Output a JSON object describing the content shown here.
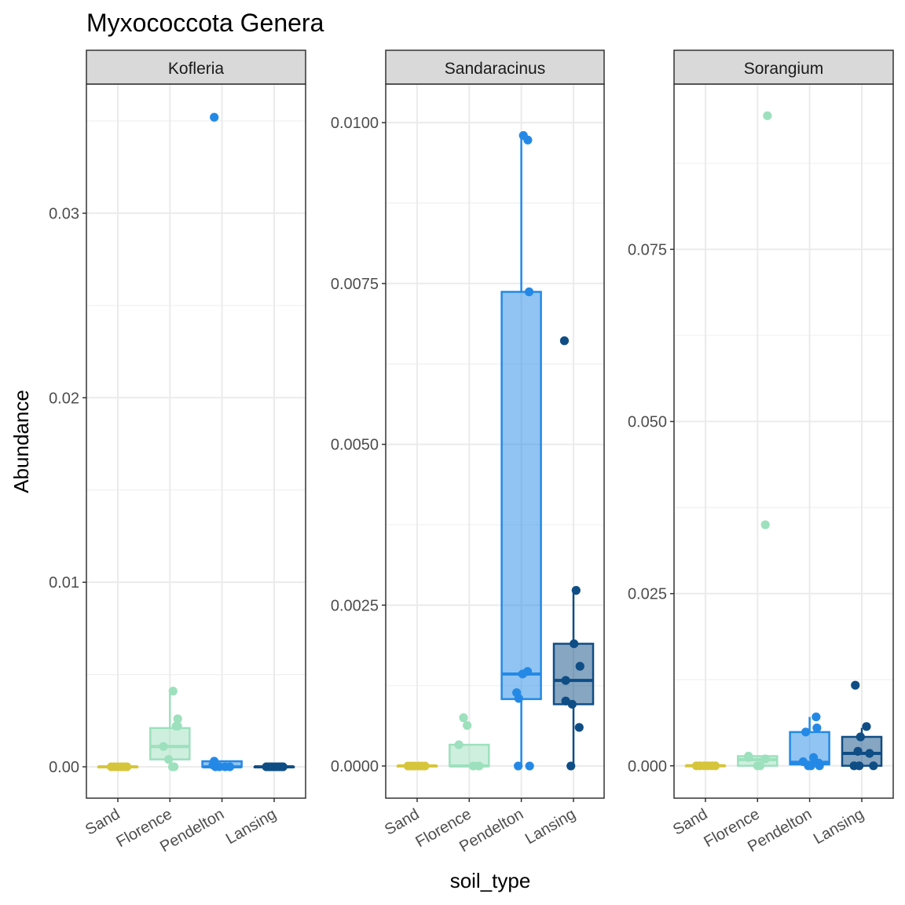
{
  "title": "Myxococcota Genera",
  "xlabel": "soil_type",
  "ylabel": "Abundance",
  "colors": {
    "Sand": "#d6c53a",
    "Florence": "#9de0bd",
    "Pendelton": "#2489e6",
    "Lansing": "#0f4d85"
  },
  "chart_data": [
    {
      "type": "boxplot",
      "facet": "Kofleria",
      "categories": [
        "Sand",
        "Florence",
        "Pendelton",
        "Lansing"
      ],
      "ylim": [
        -0.0017,
        0.037
      ],
      "yticks": [
        0.0,
        0.01,
        0.02,
        0.03
      ],
      "ytick_labels": [
        "0.00",
        "0.01",
        "0.02",
        "0.03"
      ],
      "boxes": [
        {
          "category": "Sand",
          "min": 0,
          "q1": 0,
          "median": 0,
          "q3": 0,
          "max": 0
        },
        {
          "category": "Florence",
          "min": 0.0,
          "q1": 0.0004,
          "median": 0.0011,
          "q3": 0.0021,
          "max": 0.0041
        },
        {
          "category": "Pendelton",
          "min": 0.0,
          "q1": 0.0,
          "median": 0.0,
          "q3": 0.0003,
          "max": 0.0003
        },
        {
          "category": "Lansing",
          "min": 0,
          "q1": 0,
          "median": 0,
          "q3": 0,
          "max": 0
        }
      ],
      "points": [
        {
          "category": "Sand",
          "values": [
            0,
            0,
            0,
            0,
            0,
            0
          ],
          "jitter": [
            -0.25,
            -0.13,
            0.0,
            0.12,
            0.25,
            0.35
          ]
        },
        {
          "category": "Florence",
          "values": [
            0.0041,
            0.0026,
            0.0022,
            0.0022,
            0.0011,
            0.0004,
            0.0,
            0.0
          ],
          "jitter": [
            0.12,
            0.3,
            0.24,
            0.3,
            -0.25,
            -0.05,
            0.1,
            0.16
          ]
        },
        {
          "category": "Pendelton",
          "values": [
            0.0352,
            0.0003,
            0.0001,
            0.0,
            0.0,
            0.0,
            0.0
          ],
          "jitter": [
            -0.3,
            -0.3,
            -0.35,
            -0.1,
            0.12,
            0.3,
            -0.25
          ]
        },
        {
          "category": "Lansing",
          "values": [
            0,
            0,
            0,
            0,
            0,
            0,
            0,
            0
          ],
          "jitter": [
            -0.3,
            -0.2,
            -0.1,
            0.0,
            0.1,
            0.2,
            0.28,
            0.34
          ]
        }
      ]
    },
    {
      "type": "boxplot",
      "facet": "Sandaracinus",
      "categories": [
        "Sand",
        "Florence",
        "Pendelton",
        "Lansing"
      ],
      "ylim": [
        -0.0005,
        0.0106
      ],
      "yticks": [
        0.0,
        0.0025,
        0.005,
        0.0075,
        0.01
      ],
      "ytick_labels": [
        "0.0000",
        "0.0025",
        "0.0050",
        "0.0075",
        "0.0100"
      ],
      "boxes": [
        {
          "category": "Sand",
          "min": 0,
          "q1": 0,
          "median": 0,
          "q3": 0,
          "max": 0
        },
        {
          "category": "Florence",
          "min": 0.0,
          "q1": 0.0,
          "median": 0.0,
          "q3": 0.00033,
          "max": 0.00033
        },
        {
          "category": "Pendelton",
          "min": 0.0,
          "q1": 0.00104,
          "median": 0.00143,
          "q3": 0.00737,
          "max": 0.0098
        },
        {
          "category": "Lansing",
          "min": 0.0,
          "q1": 0.00096,
          "median": 0.00133,
          "q3": 0.0019,
          "max": 0.00273
        }
      ],
      "points": [
        {
          "category": "Sand",
          "values": [
            0,
            0,
            0,
            0,
            0,
            0
          ],
          "jitter": [
            -0.35,
            -0.23,
            -0.1,
            0.05,
            0.18,
            0.3
          ]
        },
        {
          "category": "Florence",
          "values": [
            0.00075,
            0.00063,
            0.00033,
            0.0,
            0.0,
            0.0
          ],
          "jitter": [
            -0.22,
            -0.08,
            -0.4,
            0.15,
            0.35,
            0.38
          ]
        },
        {
          "category": "Pendelton",
          "values": [
            0.0098,
            0.00973,
            0.00737,
            0.00147,
            0.00143,
            0.00114,
            0.00105,
            0.0,
            0.0
          ],
          "jitter": [
            0.08,
            0.25,
            0.3,
            0.24,
            0.05,
            -0.18,
            -0.1,
            -0.12,
            0.32
          ]
        },
        {
          "category": "Lansing",
          "values": [
            0.00661,
            0.00273,
            0.0019,
            0.00155,
            0.00133,
            0.00101,
            0.00096,
            0.0006,
            0.0
          ],
          "jitter": [
            -0.35,
            0.1,
            0.02,
            0.25,
            -0.3,
            -0.3,
            -0.05,
            0.22,
            -0.1
          ]
        }
      ]
    },
    {
      "type": "boxplot",
      "facet": "Sorangium",
      "categories": [
        "Sand",
        "Florence",
        "Pendelton",
        "Lansing"
      ],
      "ylim": [
        -0.0047,
        0.099
      ],
      "yticks": [
        0.0,
        0.025,
        0.05,
        0.075
      ],
      "ytick_labels": [
        "0.000",
        "0.025",
        "0.050",
        "0.075"
      ],
      "boxes": [
        {
          "category": "Sand",
          "min": 0,
          "q1": 0,
          "median": 0,
          "q3": 0,
          "max": 0
        },
        {
          "category": "Florence",
          "min": 0.0,
          "q1": 0.0,
          "median": 0.0009,
          "q3": 0.0014,
          "max": 0.0014
        },
        {
          "category": "Pendelton",
          "min": 0.0,
          "q1": 0.0002,
          "median": 0.0005,
          "q3": 0.0049,
          "max": 0.0071
        },
        {
          "category": "Lansing",
          "min": 0.0,
          "q1": 0.0,
          "median": 0.0018,
          "q3": 0.0042,
          "max": 0.0055
        }
      ],
      "points": [
        {
          "category": "Sand",
          "values": [
            0,
            0,
            0,
            0,
            0,
            0
          ],
          "jitter": [
            -0.35,
            -0.22,
            -0.05,
            0.1,
            0.25,
            0.38
          ]
        },
        {
          "category": "Florence",
          "values": [
            0.0944,
            0.035,
            0.0014,
            0.0012,
            0.001,
            0.0,
            0.0
          ],
          "jitter": [
            0.38,
            0.3,
            -0.35,
            -0.35,
            0.3,
            0.0,
            0.1
          ]
        },
        {
          "category": "Pendelton",
          "values": [
            0.0071,
            0.0055,
            0.0049,
            0.0012,
            0.0006,
            0.0004,
            0.0,
            0.0,
            0.0
          ],
          "jitter": [
            0.25,
            0.28,
            -0.15,
            0.15,
            -0.25,
            0.35,
            -0.05,
            0.05,
            0.38
          ]
        },
        {
          "category": "Lansing",
          "values": [
            0.0117,
            0.0057,
            0.0042,
            0.0021,
            0.0018,
            0.0,
            0.0,
            0.0
          ],
          "jitter": [
            -0.25,
            0.18,
            -0.05,
            -0.15,
            0.3,
            -0.3,
            -0.1,
            0.45
          ]
        }
      ]
    }
  ]
}
